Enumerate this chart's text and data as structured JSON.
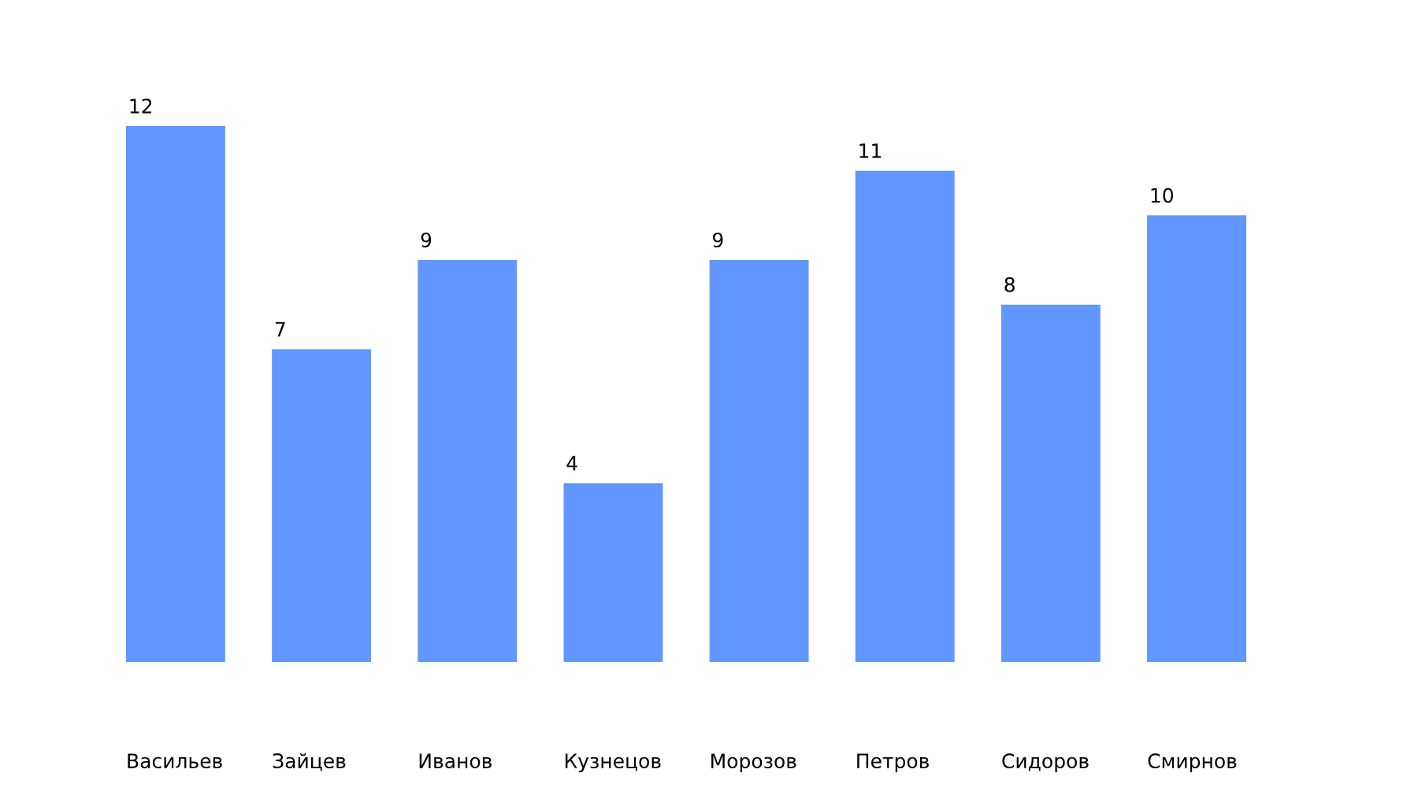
{
  "chart_data": {
    "type": "bar",
    "categories": [
      "Васильев",
      "Зайцев",
      "Иванов",
      "Кузнецов",
      "Морозов",
      "Петров",
      "Сидоров",
      "Смирнов"
    ],
    "values": [
      12,
      7,
      9,
      4,
      9,
      11,
      8,
      10
    ],
    "color": "#6297ff",
    "data_labels": true
  }
}
